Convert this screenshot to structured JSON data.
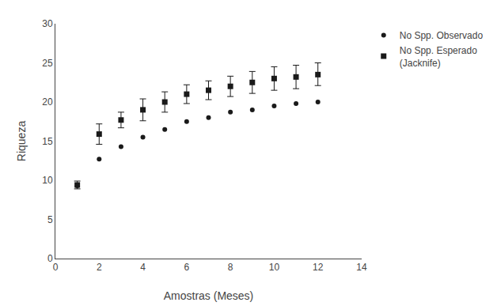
{
  "chart_data": {
    "type": "scatter",
    "xlabel": "Amostras (Meses)",
    "ylabel": "Riqueza",
    "x": [
      1,
      2,
      3,
      4,
      5,
      6,
      7,
      8,
      9,
      10,
      11,
      12
    ],
    "series": [
      {
        "name": "No Spp. Esperado\n(Jacknife)",
        "marker": "square",
        "color": "#1a1a1a",
        "values": [
          9.4,
          15.9,
          17.7,
          19.0,
          20.0,
          21.0,
          21.5,
          22.0,
          22.5,
          23.0,
          23.2,
          23.5
        ],
        "upper": [
          9.9,
          17.2,
          18.7,
          20.4,
          21.3,
          22.2,
          22.7,
          23.3,
          23.9,
          24.5,
          24.7,
          25.0
        ],
        "lower": [
          8.9,
          14.6,
          16.7,
          17.6,
          18.7,
          19.8,
          20.3,
          20.7,
          21.1,
          21.5,
          21.7,
          22.1
        ]
      },
      {
        "name": "No Spp. Observado",
        "marker": "circle",
        "color": "#1a1a1a",
        "values": [
          9.3,
          12.7,
          14.3,
          15.5,
          16.5,
          17.5,
          18.0,
          18.7,
          19.0,
          19.5,
          19.8,
          20.0
        ]
      }
    ],
    "xlim": [
      0,
      14
    ],
    "xticks": [
      0,
      2,
      4,
      6,
      8,
      10,
      12,
      14
    ],
    "ylim": [
      0,
      30
    ],
    "yticks": [
      0,
      5,
      10,
      15,
      20,
      25,
      30
    ],
    "grid": false,
    "legend": "right"
  }
}
